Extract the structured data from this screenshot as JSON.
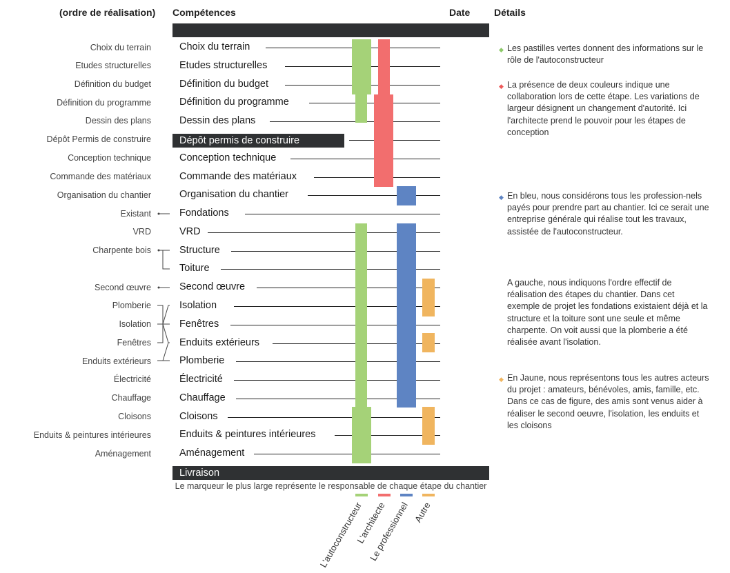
{
  "headers": {
    "ordre": "(ordre de réalisation)",
    "competences": "Compétences",
    "date": "Date",
    "details": "Détails"
  },
  "ordre": [
    "Choix du terrain",
    "Etudes structurelles",
    "Définition du budget",
    "Définition du programme",
    "Dessin des plans",
    "Dépôt Permis de construire",
    "Conception technique",
    "Commande des matériaux",
    "Organisation du chantier",
    "Existant",
    "VRD",
    "Charpente bois",
    "Second œuvre",
    "Plomberie",
    "Isolation",
    "Fenêtres",
    "Enduits extérieurs",
    "Électricité",
    "Chauffage",
    "Cloisons",
    "Enduits & peintures intérieures",
    "Aménagement"
  ],
  "competences": [
    "Choix du terrain",
    "Etudes structurelles",
    "Définition du budget",
    "Définition du programme",
    "Dessin des plans",
    "Dépôt permis de construire",
    "Conception technique",
    "Commande des matériaux",
    "Organisation du chantier",
    "Fondations",
    "VRD",
    "Structure",
    "Toiture",
    "Second œuvre",
    "Isolation",
    "Fenêtres",
    "Enduits extérieurs",
    "Plomberie",
    "Électricité",
    "Chauffage",
    "Cloisons",
    "Enduits & peintures intérieures",
    "Aménagement"
  ],
  "livraison": "Livraison",
  "note": "Le marqueur le plus large représente le responsable de chaque étape du chantier",
  "legend": [
    {
      "label": "L'autoconstructeur",
      "color": "#a5d278"
    },
    {
      "label": "L'architecte",
      "color": "#f26e6e"
    },
    {
      "label": "Le professionnel",
      "color": "#5e84c3"
    },
    {
      "label": "Autre",
      "color": "#f0b55f"
    }
  ],
  "details": [
    {
      "color": "#8cc868",
      "text": "Les pastilles vertes donnent des informations sur le rôle de l'autoconstructeur"
    },
    {
      "color": "#ee5a5a",
      "text": "La présence de deux couleurs indique une collaboration lors de cette étape. Les variations de largeur désignent un changement d'autorité. Ici l'architecte prend le pouvoir pour les étapes de conception"
    },
    {
      "color": "#5e84c3",
      "text": "En bleu, nous considérons tous les profession-nels payés pour prendre part au chantier. Ici ce serait une entreprise générale qui réalise tout les travaux, assistée de l'autoconstructeur."
    },
    {
      "color": "",
      "text": "A gauche, nous indiquons l'ordre effectif de réalisation des étapes du chantier. Dans cet exemple de projet les fondations existaient déjà et la structure et la toiture sont une seule et même charpente. On voit aussi que la plomberie a été réalisée avant l'isolation."
    },
    {
      "color": "#f0b55f",
      "text": "En Jaune, nous représentons tous les autres acteurs du projet : amateurs, bénévoles, amis, famille, etc. Dans ce cas de figure, des amis sont venus aider à réaliser le second oeuvre, l'isolation, les enduits et les cloisons"
    }
  ]
}
